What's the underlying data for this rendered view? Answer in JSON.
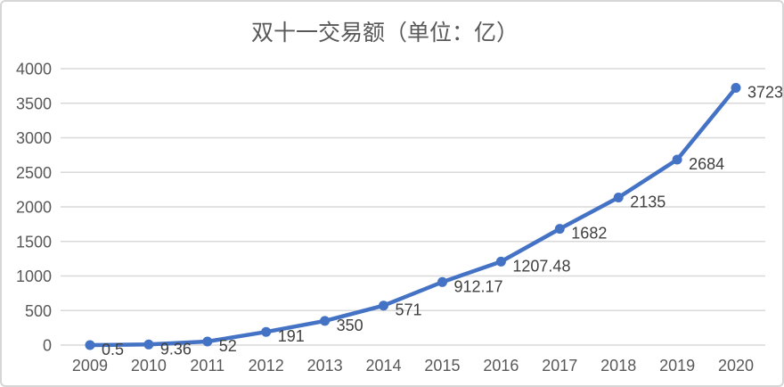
{
  "chart_data": {
    "type": "line",
    "title": "双十一交易额（单位：亿）",
    "categories": [
      "2009",
      "2010",
      "2011",
      "2012",
      "2013",
      "2014",
      "2015",
      "2016",
      "2017",
      "2018",
      "2019",
      "2020"
    ],
    "values": [
      0.5,
      9.36,
      52,
      191,
      350,
      571,
      912.17,
      1207.48,
      1682,
      2135,
      2684,
      3723
    ],
    "data_labels": [
      "0.5",
      "9.36",
      "52",
      "191",
      "350",
      "571",
      "912.17",
      "1207.48",
      "1682",
      "2135",
      "2684",
      "3723"
    ],
    "xlabel": "",
    "ylabel": "",
    "ylim": [
      0,
      4000
    ],
    "yticks": [
      0,
      500,
      1000,
      1500,
      2000,
      2500,
      3000,
      3500,
      4000
    ],
    "grid": true,
    "legend": "none",
    "colors": {
      "line": "#4472C4",
      "marker": "#4472C4",
      "gridline": "#D9D9D9",
      "axis_text": "#595959",
      "data_label": "#404040",
      "title": "#595959",
      "panel_border": "#D6D6D6",
      "background": "#FFFFFF"
    }
  }
}
